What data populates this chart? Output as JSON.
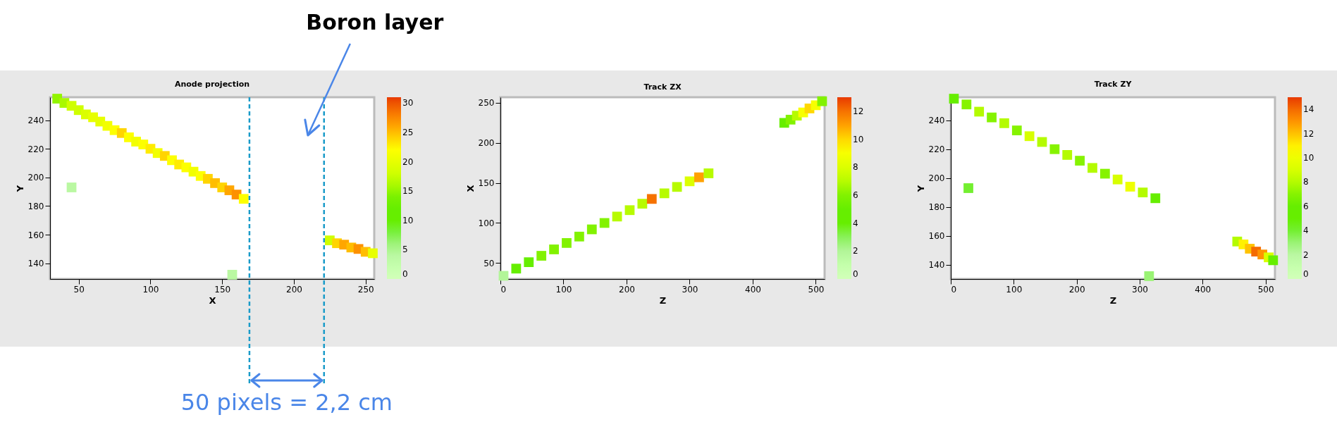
{
  "chart_data": [
    {
      "type": "scatter",
      "title": "Anode projection",
      "xlabel": "X",
      "ylabel": "Y",
      "marker": "square",
      "x": [
        35,
        40,
        45,
        50,
        55,
        60,
        65,
        70,
        75,
        80,
        85,
        90,
        95,
        100,
        105,
        110,
        115,
        120,
        125,
        130,
        135,
        140,
        145,
        150,
        155,
        160,
        165,
        225,
        230,
        235,
        240,
        245,
        250,
        255,
        45,
        157
      ],
      "values": [
        255,
        252,
        250,
        247,
        244,
        242,
        239,
        236,
        233,
        231,
        228,
        225,
        223,
        220,
        217,
        215,
        212,
        209,
        207,
        204,
        201,
        199,
        196,
        193,
        191,
        188,
        185,
        156,
        154,
        153,
        151,
        150,
        148,
        147,
        193,
        132
      ],
      "cvalues": [
        15,
        16,
        18,
        18,
        19,
        20,
        20,
        21,
        22,
        24,
        22,
        21,
        22,
        23,
        21,
        24,
        22,
        23,
        22,
        21,
        22,
        24,
        25,
        24,
        26,
        27,
        22,
        18,
        24,
        26,
        25,
        27,
        25,
        20,
        4,
        4
      ],
      "xlim": [
        30,
        256
      ],
      "ylim": [
        129,
        256
      ],
      "xticks": [
        50,
        100,
        150,
        200,
        250
      ],
      "yticks": [
        140,
        160,
        180,
        200,
        220,
        240
      ],
      "clim": [
        0,
        31
      ],
      "cticks": [
        0,
        5,
        10,
        15,
        20,
        25,
        30
      ],
      "ref_lines": [
        {
          "axis": "x",
          "value": 169,
          "color": "#1a9bc9",
          "line_style": "dashed"
        },
        {
          "axis": "x",
          "value": 221,
          "color": "#1a9bc9",
          "line_style": "dashed"
        }
      ],
      "annotations": [
        "Boron layer",
        "50 pixels = 2,2 cm"
      ]
    },
    {
      "type": "scatter",
      "title": "Track ZX",
      "xlabel": "Z",
      "ylabel": "X",
      "marker": "square",
      "x": [
        5,
        25,
        45,
        65,
        85,
        105,
        125,
        145,
        165,
        185,
        205,
        225,
        240,
        260,
        280,
        300,
        315,
        330,
        450,
        460,
        470,
        480,
        490,
        500,
        510
      ],
      "values": [
        34,
        43,
        51,
        59,
        67,
        75,
        83,
        92,
        100,
        108,
        116,
        124,
        130,
        137,
        145,
        152,
        157,
        162,
        225,
        229,
        234,
        238,
        243,
        247,
        252
      ],
      "cvalues": [
        2,
        5,
        5,
        6,
        6,
        6,
        6,
        6,
        6,
        7,
        7,
        7,
        12,
        7,
        7,
        8,
        11,
        7,
        5,
        6,
        7,
        9,
        10,
        9,
        6
      ],
      "xlim": [
        0,
        514
      ],
      "ylim": [
        30,
        257
      ],
      "xticks": [
        0,
        100,
        200,
        300,
        400,
        500
      ],
      "yticks": [
        50,
        100,
        150,
        200,
        250
      ],
      "clim": [
        0,
        13
      ],
      "cticks": [
        0,
        2,
        4,
        6,
        8,
        10,
        12
      ]
    },
    {
      "type": "scatter",
      "title": "Track ZY",
      "xlabel": "Z",
      "ylabel": "Y",
      "marker": "square",
      "x": [
        5,
        25,
        45,
        65,
        85,
        105,
        125,
        145,
        165,
        185,
        205,
        225,
        245,
        265,
        285,
        305,
        325,
        455,
        465,
        475,
        485,
        495,
        505,
        512,
        28,
        315
      ],
      "values": [
        255,
        251,
        246,
        242,
        238,
        233,
        229,
        225,
        220,
        216,
        212,
        207,
        203,
        199,
        194,
        190,
        186,
        156,
        154,
        151,
        149,
        147,
        145,
        143,
        193,
        132
      ],
      "cvalues": [
        6,
        7,
        8,
        7,
        8,
        7,
        9,
        8,
        7,
        8,
        7,
        8,
        7,
        9,
        10,
        8,
        6,
        8,
        11,
        12,
        14,
        13,
        9,
        5,
        4,
        3
      ],
      "xlim": [
        0,
        515
      ],
      "ylim": [
        130,
        256
      ],
      "xticks": [
        0,
        100,
        200,
        300,
        400,
        500
      ],
      "yticks": [
        140,
        160,
        180,
        200,
        220,
        240
      ],
      "clim": [
        0,
        15
      ],
      "cticks": [
        0,
        2,
        4,
        6,
        8,
        10,
        12,
        14
      ]
    }
  ]
}
